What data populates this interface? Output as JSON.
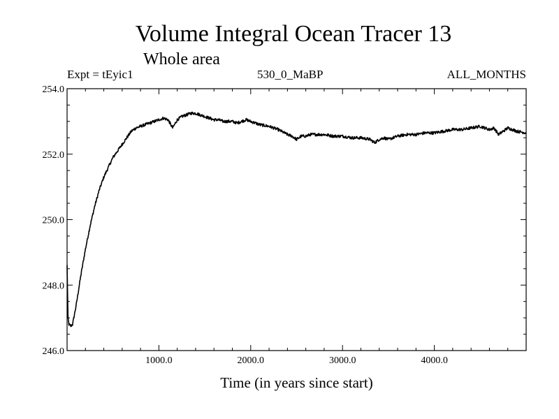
{
  "chart_data": {
    "type": "line",
    "title": "Volume Integral Ocean Tracer 13",
    "subtitle": "Whole area",
    "left_label": "Expt = tEyic1",
    "center_label": "530_0_MaBP",
    "right_label": "ALL_MONTHS",
    "xlabel": "Time (in years since start)",
    "ylabel": "",
    "xlim": [
      0,
      5000
    ],
    "ylim": [
      246.0,
      254.0
    ],
    "x_ticks": [
      1000,
      2000,
      3000,
      4000
    ],
    "x_tick_labels": [
      "1000.0",
      "2000.0",
      "3000.0",
      "4000.0"
    ],
    "y_ticks": [
      246,
      248,
      250,
      252,
      254
    ],
    "y_tick_labels": [
      "246.0",
      "248.0",
      "250.0",
      "252.0",
      "254.0"
    ],
    "x_minor_step": 200,
    "y_minor_step": 0.5,
    "grid": false,
    "series": [
      {
        "name": "Ocean Tracer 13",
        "color": "#000000",
        "x": [
          0,
          10,
          20,
          40,
          60,
          80,
          100,
          150,
          200,
          250,
          300,
          350,
          400,
          450,
          500,
          550,
          600,
          650,
          700,
          750,
          800,
          850,
          900,
          950,
          1000,
          1050,
          1100,
          1150,
          1200,
          1250,
          1300,
          1350,
          1400,
          1450,
          1500,
          1550,
          1600,
          1650,
          1700,
          1750,
          1800,
          1850,
          1900,
          1950,
          2000,
          2100,
          2200,
          2300,
          2400,
          2450,
          2500,
          2550,
          2600,
          2650,
          2700,
          2800,
          2900,
          3000,
          3100,
          3200,
          3300,
          3350,
          3400,
          3450,
          3500,
          3600,
          3700,
          3800,
          3900,
          4000,
          4100,
          4200,
          4300,
          4400,
          4500,
          4550,
          4600,
          4650,
          4700,
          4750,
          4800,
          4850,
          4900,
          5000
        ],
        "values": [
          248.6,
          247.0,
          246.8,
          246.75,
          246.8,
          247.1,
          247.4,
          248.3,
          249.1,
          249.8,
          250.4,
          250.9,
          251.3,
          251.6,
          251.9,
          252.1,
          252.3,
          252.5,
          252.7,
          252.8,
          252.85,
          252.9,
          252.95,
          253.0,
          253.05,
          253.1,
          253.05,
          252.8,
          253.05,
          253.15,
          253.2,
          253.25,
          253.25,
          253.2,
          253.15,
          253.1,
          253.05,
          253.05,
          253.0,
          253.0,
          253.0,
          252.95,
          253.0,
          253.05,
          253.0,
          252.9,
          252.85,
          252.75,
          252.6,
          252.55,
          252.45,
          252.55,
          252.55,
          252.6,
          252.6,
          252.6,
          252.55,
          252.55,
          252.5,
          252.5,
          252.45,
          252.35,
          252.45,
          252.5,
          252.45,
          252.55,
          252.6,
          252.6,
          252.65,
          252.65,
          252.7,
          252.75,
          252.75,
          252.8,
          252.85,
          252.8,
          252.75,
          252.8,
          252.6,
          252.7,
          252.8,
          252.75,
          252.7,
          252.65
        ]
      }
    ]
  }
}
